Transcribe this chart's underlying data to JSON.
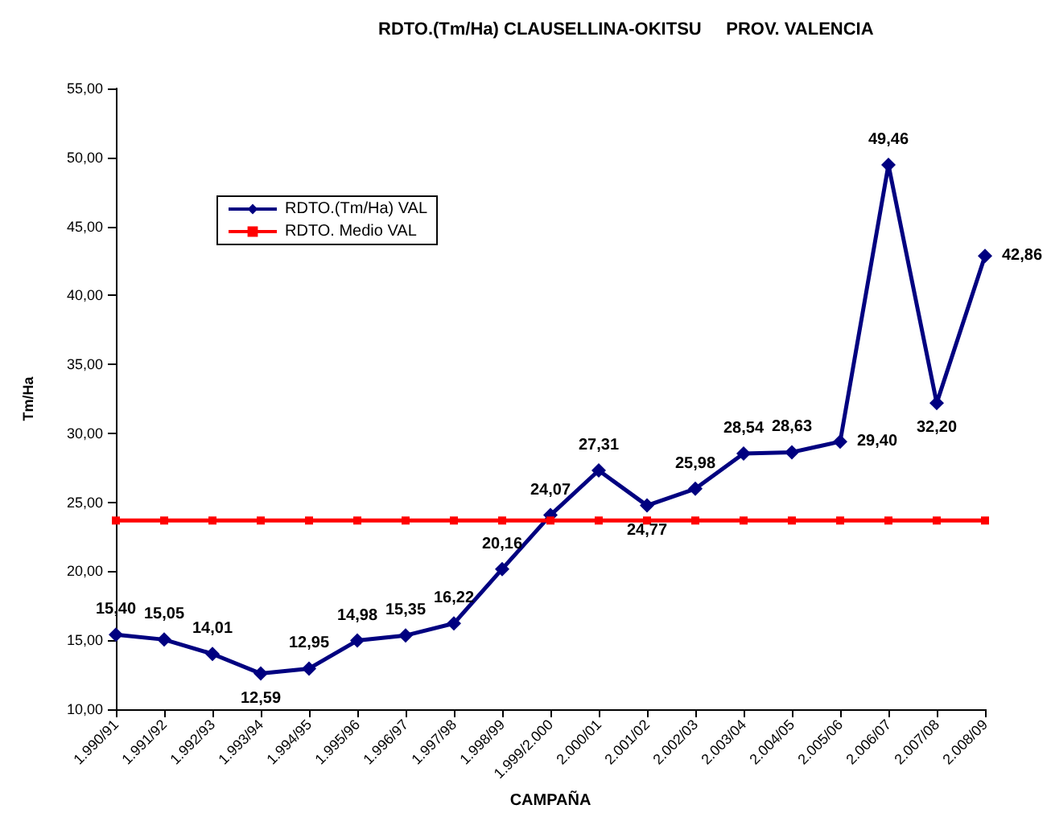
{
  "chart_data": {
    "type": "line",
    "title": "RDTO.(Tm/Ha) CLAUSELLINA-OKITSU     PROV. VALENCIA",
    "xlabel": "CAMPAÑA",
    "ylabel": "Tm/Ha",
    "categories": [
      "1.990/91",
      "1.991/92",
      "1.992/93",
      "1.993/94",
      "1.994/95",
      "1.995/96",
      "1.996/97",
      "1.997/98",
      "1.998/99",
      "1.999/2.000",
      "2.000/01",
      "2.001/02",
      "2.002/03",
      "2.003/04",
      "2.004/05",
      "2.005/06",
      "2.006/07",
      "2.007/08",
      "2.008/09"
    ],
    "series": [
      {
        "name": "RDTO.(Tm/Ha) VAL",
        "color": "#000080",
        "marker": "diamond",
        "values": [
          15.4,
          15.05,
          14.01,
          12.59,
          12.95,
          14.98,
          15.35,
          16.22,
          20.16,
          24.07,
          27.31,
          24.77,
          25.98,
          28.54,
          28.63,
          29.4,
          49.46,
          32.2,
          42.86
        ],
        "value_labels": [
          "15,40",
          "15,05",
          "14,01",
          "12,59",
          "12,95",
          "14,98",
          "15,35",
          "16,22",
          "20,16",
          "24,07",
          "27,31",
          "24,77",
          "25,98",
          "28,54",
          "28,63",
          "29,40",
          "49,46",
          "32,20",
          "42,86"
        ]
      },
      {
        "name": "RDTO. Medio VAL",
        "color": "#ff0000",
        "marker": "square",
        "values": [
          23.68,
          23.68,
          23.68,
          23.68,
          23.68,
          23.68,
          23.68,
          23.68,
          23.68,
          23.68,
          23.68,
          23.68,
          23.68,
          23.68,
          23.68,
          23.68,
          23.68,
          23.68,
          23.68
        ]
      }
    ],
    "ylim": [
      10,
      55
    ],
    "yticks": [
      {
        "value": 10,
        "label": "10,00"
      },
      {
        "value": 15,
        "label": "15,00"
      },
      {
        "value": 20,
        "label": "20,00"
      },
      {
        "value": 25,
        "label": "25,00"
      },
      {
        "value": 30,
        "label": "30,00"
      },
      {
        "value": 35,
        "label": "35,00"
      },
      {
        "value": 40,
        "label": "40,00"
      },
      {
        "value": 45,
        "label": "45,00"
      },
      {
        "value": 50,
        "label": "50,00"
      },
      {
        "value": 55,
        "label": "55,00"
      }
    ],
    "grid": false,
    "legend": "top left",
    "line_style": "solid"
  }
}
